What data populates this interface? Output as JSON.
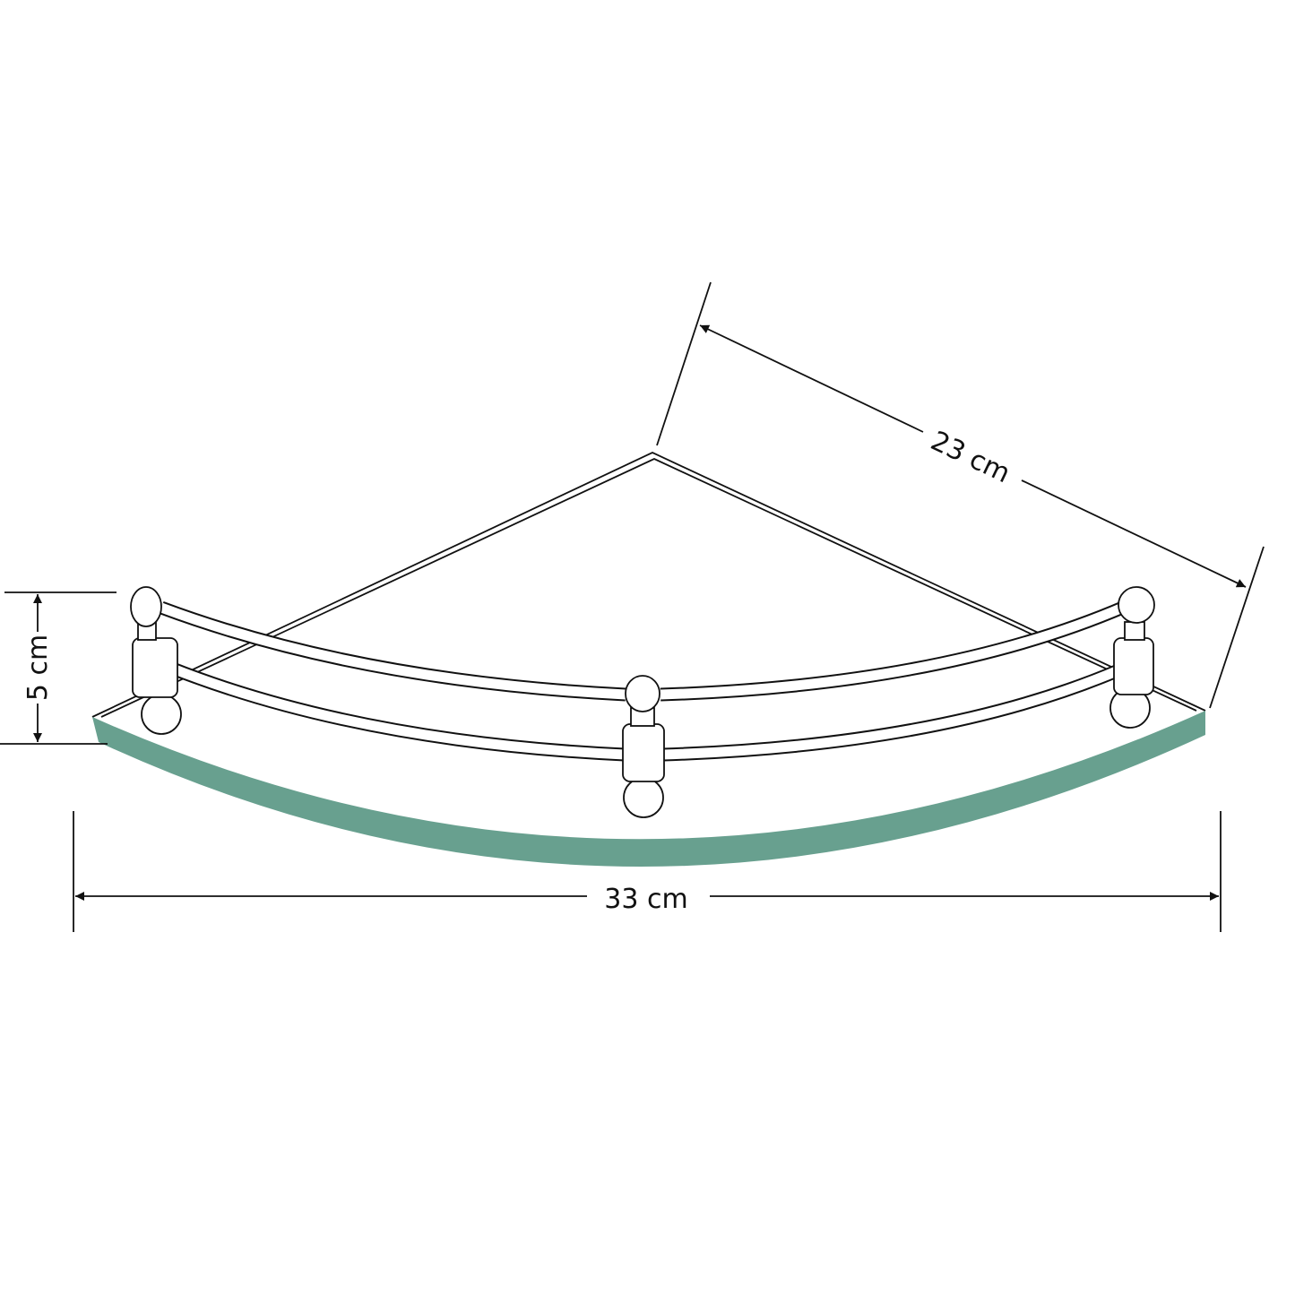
{
  "dimensions": {
    "depth": "23 cm",
    "height": "5 cm",
    "width": "33 cm"
  },
  "colors": {
    "glass_edge": "#68a08f",
    "line": "#111111"
  }
}
